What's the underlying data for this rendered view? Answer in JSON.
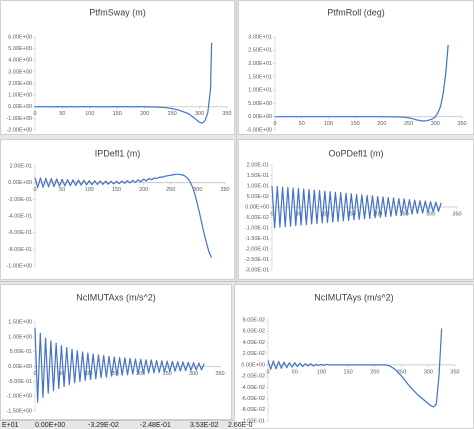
{
  "chart_data": [
    {
      "type": "line",
      "title": "PtfmSway (m)",
      "color": "#4472c4",
      "x": [
        0,
        20,
        40,
        60,
        80,
        100,
        120,
        140,
        160,
        180,
        200,
        220,
        240,
        260,
        280,
        290,
        300,
        305,
        310,
        315,
        320,
        322
      ],
      "values": [
        0,
        0,
        0,
        0,
        0,
        0,
        0,
        0,
        0,
        0,
        0,
        -0.02,
        -0.08,
        -0.25,
        -0.6,
        -0.95,
        -1.35,
        -1.4,
        -1.2,
        -0.5,
        1.5,
        5.5
      ],
      "xlim": [
        0,
        350
      ],
      "xticks": [
        0,
        50,
        100,
        150,
        200,
        250,
        300,
        350
      ],
      "ylim": [
        -2,
        6
      ],
      "yticks": [
        {
          "value": 6,
          "label": "6.00E+00"
        },
        {
          "value": 5,
          "label": "5.00E+00"
        },
        {
          "value": 4,
          "label": "4.00E+00"
        },
        {
          "value": 3,
          "label": "3.00E+00"
        },
        {
          "value": 2,
          "label": "2.00E+00"
        },
        {
          "value": 1,
          "label": "1.00E+00"
        },
        {
          "value": 0,
          "label": "0.00E+00"
        },
        {
          "value": -1,
          "label": "-1.00E+00"
        },
        {
          "value": -2,
          "label": "-2.00E+00"
        }
      ]
    },
    {
      "type": "line",
      "title": "PtfmRoll (deg)",
      "color": "#4472c4",
      "x": [
        0,
        50,
        100,
        150,
        200,
        240,
        255,
        265,
        275,
        285,
        295,
        300,
        305,
        310,
        315,
        320,
        324
      ],
      "values": [
        0,
        0,
        0,
        0,
        0,
        -0.1,
        -0.6,
        -1.2,
        -1.6,
        -1.5,
        -0.8,
        0,
        1.5,
        4,
        9,
        17,
        27
      ],
      "xlim": [
        0,
        350
      ],
      "xticks": [
        0,
        50,
        100,
        150,
        200,
        250,
        300,
        350
      ],
      "ylim": [
        -5,
        30
      ],
      "yticks": [
        {
          "value": 30,
          "label": "3.00E+01"
        },
        {
          "value": 25,
          "label": "2.50E+01"
        },
        {
          "value": 20,
          "label": "2.00E+01"
        },
        {
          "value": 15,
          "label": "1.50E+01"
        },
        {
          "value": 10,
          "label": "1.00E+01"
        },
        {
          "value": 5,
          "label": "5.00E+00"
        },
        {
          "value": 0,
          "label": "0.00E+00"
        },
        {
          "value": -5,
          "label": "-5.00E+00"
        }
      ]
    },
    {
      "type": "line",
      "title": "IPDefl1 (m)",
      "color": "#4472c4",
      "x": [
        0,
        5,
        10,
        15,
        20,
        25,
        30,
        35,
        40,
        45,
        50,
        55,
        60,
        65,
        70,
        75,
        80,
        85,
        90,
        95,
        100,
        105,
        110,
        115,
        120,
        125,
        130,
        135,
        140,
        145,
        150,
        155,
        160,
        165,
        170,
        175,
        180,
        185,
        190,
        195,
        200,
        205,
        210,
        215,
        220,
        225,
        230,
        235,
        240,
        245,
        250,
        255,
        260,
        265,
        270,
        275,
        280,
        285,
        290,
        295,
        300,
        305,
        310,
        315,
        320,
        325
      ],
      "values": [
        0.06,
        -0.058,
        0.056,
        -0.054,
        0.052,
        -0.05,
        0.048,
        -0.046,
        0.044,
        -0.042,
        0.04,
        -0.038,
        0.037,
        -0.035,
        0.034,
        -0.032,
        0.031,
        -0.029,
        0.028,
        -0.026,
        0.025,
        -0.024,
        0.023,
        -0.022,
        0.021,
        -0.02,
        0.019,
        -0.018,
        0.017,
        -0.016,
        0.017,
        -0.012,
        0.02,
        -0.008,
        0.024,
        -0.004,
        0.028,
        0.002,
        0.034,
        0.01,
        0.042,
        0.02,
        0.05,
        0.034,
        0.058,
        0.05,
        0.068,
        0.066,
        0.078,
        0.084,
        0.09,
        0.095,
        0.1,
        0.1,
        0.095,
        0.085,
        0.06,
        0.02,
        -0.05,
        -0.15,
        -0.28,
        -0.42,
        -0.57,
        -0.7,
        -0.82,
        -0.9
      ],
      "xlim": [
        0,
        350
      ],
      "xticks": [
        0,
        50,
        100,
        150,
        200,
        250,
        300,
        350
      ],
      "ylim": [
        -1,
        0.2
      ],
      "yticks": [
        {
          "value": 0.2,
          "label": "2.00E-01"
        },
        {
          "value": 0,
          "label": "0.00E+00"
        },
        {
          "value": -0.2,
          "label": "-2.00E-01"
        },
        {
          "value": -0.4,
          "label": "-4.00E-01"
        },
        {
          "value": -0.6,
          "label": "-6.00E-01"
        },
        {
          "value": -0.8,
          "label": "-8.00E-01"
        },
        {
          "value": -1,
          "label": "-1.00E+00"
        }
      ]
    },
    {
      "type": "line",
      "title": "OoPDefl1 (m)",
      "color": "#4472c4",
      "x": [
        0,
        5,
        10,
        15,
        20,
        25,
        30,
        35,
        40,
        45,
        50,
        55,
        60,
        65,
        70,
        75,
        80,
        85,
        90,
        95,
        100,
        105,
        110,
        115,
        120,
        125,
        130,
        135,
        140,
        145,
        150,
        155,
        160,
        165,
        170,
        175,
        180,
        185,
        190,
        195,
        200,
        205,
        210,
        215,
        220,
        225,
        230,
        235,
        240,
        245,
        250,
        255,
        260,
        265,
        270,
        275,
        280,
        285,
        290,
        295,
        300,
        305,
        310,
        315,
        320
      ],
      "values": [
        0.1,
        -0.099,
        0.098,
        -0.096,
        0.095,
        -0.094,
        0.093,
        -0.091,
        0.09,
        -0.089,
        0.088,
        -0.086,
        0.085,
        -0.084,
        0.083,
        -0.081,
        0.08,
        -0.079,
        0.078,
        -0.076,
        0.075,
        -0.074,
        0.073,
        -0.071,
        0.07,
        -0.069,
        0.068,
        -0.066,
        0.065,
        -0.064,
        0.063,
        -0.061,
        0.06,
        -0.059,
        0.058,
        -0.056,
        0.055,
        -0.054,
        0.053,
        -0.051,
        0.05,
        -0.049,
        0.048,
        -0.046,
        0.045,
        -0.044,
        0.043,
        -0.041,
        0.04,
        -0.039,
        0.038,
        -0.036,
        0.035,
        -0.034,
        0.033,
        -0.031,
        0.03,
        -0.029,
        0.028,
        -0.026,
        0.025,
        -0.024,
        0.023,
        -0.021,
        0.02
      ],
      "xlim": [
        0,
        350
      ],
      "xticks": [
        0,
        50,
        100,
        150,
        200,
        250,
        300,
        350
      ],
      "ylim": [
        -0.3,
        0.2
      ],
      "yticks": [
        {
          "value": 0.2,
          "label": "2.00E-01"
        },
        {
          "value": 0.15,
          "label": "1.50E-01"
        },
        {
          "value": 0.1,
          "label": "1.00E-01"
        },
        {
          "value": 0.05,
          "label": "5.00E-02"
        },
        {
          "value": 0,
          "label": "0.00E+00"
        },
        {
          "value": -0.05,
          "label": "-5.00E-02"
        },
        {
          "value": -0.1,
          "label": "-1.00E-01"
        },
        {
          "value": -0.15,
          "label": "-1.50E-01"
        },
        {
          "value": -0.2,
          "label": "-2.00E-01"
        },
        {
          "value": -0.25,
          "label": "-2.50E-01"
        },
        {
          "value": -0.3,
          "label": "-3.00E-01"
        }
      ]
    },
    {
      "type": "line",
      "title": "NcIMUTAxs (m/s^2)",
      "color": "#4472c4",
      "x": [
        0,
        5,
        10,
        15,
        20,
        25,
        30,
        35,
        40,
        45,
        50,
        55,
        60,
        65,
        70,
        75,
        80,
        85,
        90,
        95,
        100,
        105,
        110,
        115,
        120,
        125,
        130,
        135,
        140,
        145,
        150,
        155,
        160,
        165,
        170,
        175,
        180,
        185,
        190,
        195,
        200,
        205,
        210,
        215,
        220,
        225,
        230,
        235,
        240,
        245,
        250,
        255,
        260,
        265,
        270,
        275,
        280,
        285,
        290,
        295,
        300,
        305,
        310,
        315,
        320
      ],
      "values": [
        1.3,
        -1.2,
        1.12,
        -1.04,
        0.96,
        -0.9,
        0.86,
        -0.82,
        0.78,
        -0.74,
        0.7,
        -0.67,
        0.64,
        -0.61,
        0.58,
        -0.55,
        0.53,
        -0.51,
        0.49,
        -0.47,
        0.45,
        -0.44,
        0.42,
        -0.41,
        0.39,
        -0.38,
        0.37,
        -0.36,
        0.34,
        -0.33,
        0.32,
        -0.31,
        0.3,
        -0.29,
        0.29,
        -0.28,
        0.27,
        -0.26,
        0.25,
        -0.25,
        0.24,
        -0.23,
        0.23,
        -0.22,
        0.22,
        -0.21,
        0.2,
        -0.2,
        0.19,
        -0.19,
        0.18,
        -0.17,
        0.17,
        -0.16,
        0.16,
        -0.15,
        0.15,
        -0.14,
        0.14,
        -0.13,
        0.13,
        -0.12,
        0.12,
        -0.11,
        0.1
      ],
      "xlim": [
        0,
        350
      ],
      "xticks": [
        0,
        50,
        100,
        150,
        200,
        250,
        300,
        350
      ],
      "ylim": [
        -1.5,
        1.5
      ],
      "yticks": [
        {
          "value": 1.5,
          "label": "1.50E+00"
        },
        {
          "value": 1,
          "label": "1.00E+00"
        },
        {
          "value": 0.5,
          "label": "5.00E-01"
        },
        {
          "value": 0,
          "label": "0.00E+00"
        },
        {
          "value": -0.5,
          "label": "-5.00E-01"
        },
        {
          "value": -1,
          "label": "-1.00E+00"
        },
        {
          "value": -1.5,
          "label": "-1.50E+00"
        }
      ]
    },
    {
      "type": "line",
      "title": "NcIMUTAys (m/s^2)",
      "color": "#4472c4",
      "x": [
        0,
        5,
        10,
        15,
        20,
        25,
        30,
        35,
        40,
        45,
        50,
        55,
        60,
        65,
        70,
        75,
        80,
        85,
        90,
        95,
        100,
        105,
        110,
        115,
        120,
        125,
        130,
        135,
        140,
        145,
        150,
        155,
        160,
        165,
        170,
        175,
        180,
        185,
        190,
        195,
        200,
        205,
        210,
        215,
        220,
        225,
        230,
        235,
        240,
        245,
        250,
        255,
        260,
        265,
        270,
        275,
        280,
        285,
        290,
        295,
        300,
        305,
        310,
        315,
        320,
        325
      ],
      "values": [
        0.008,
        -0.008,
        0.007,
        -0.007,
        0.006,
        -0.006,
        0.005,
        -0.005,
        0.004,
        -0.004,
        0.004,
        -0.003,
        0.003,
        -0.003,
        0.002,
        -0.002,
        0.002,
        -0.002,
        0.001,
        -0.001,
        0.001,
        -0.001,
        0.001,
        0,
        0,
        0,
        0,
        0,
        0,
        0,
        0,
        0,
        0,
        0,
        0,
        0,
        0,
        0,
        0,
        0,
        0,
        0,
        0,
        0,
        0,
        -0.001,
        -0.003,
        -0.006,
        -0.01,
        -0.015,
        -0.02,
        -0.026,
        -0.032,
        -0.038,
        -0.043,
        -0.048,
        -0.053,
        -0.057,
        -0.061,
        -0.065,
        -0.069,
        -0.073,
        -0.075,
        -0.07,
        -0.02,
        0.065
      ],
      "xlim": [
        0,
        350
      ],
      "xticks": [
        0,
        50,
        100,
        150,
        200,
        250,
        300,
        350
      ],
      "ylim": [
        -0.1,
        0.08
      ],
      "yticks": [
        {
          "value": 0.08,
          "label": "8.00E-02"
        },
        {
          "value": 0.06,
          "label": "6.00E-02"
        },
        {
          "value": 0.04,
          "label": "4.00E-02"
        },
        {
          "value": 0.02,
          "label": "2.00E-02"
        },
        {
          "value": 0,
          "label": "0.00E+00"
        },
        {
          "value": -0.02,
          "label": "-2.00E-02"
        },
        {
          "value": -0.04,
          "label": "-4.00E-02"
        },
        {
          "value": -0.06,
          "label": "-6.00E-02"
        },
        {
          "value": -0.08,
          "label": "-8.00E-02"
        },
        {
          "value": -0.1,
          "label": "-1.00E-01"
        }
      ]
    }
  ],
  "sheet_cells": [
    "E+01",
    "0.00E+00",
    "-3.29E-02",
    "-2.48E-01",
    "3.53E-02",
    "2.66E-0"
  ]
}
